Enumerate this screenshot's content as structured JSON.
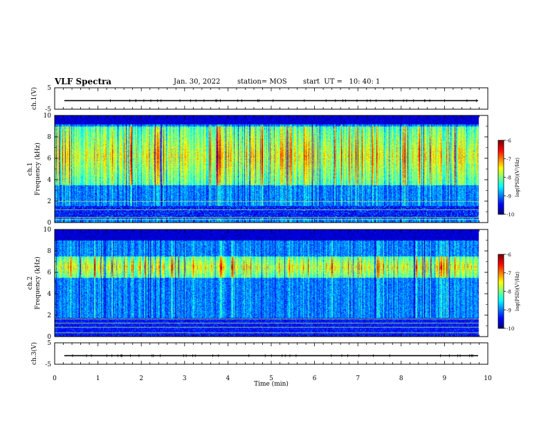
{
  "header": {
    "title": "VLF Spectra",
    "date": "Jan. 30, 2022",
    "station": "station= MOS",
    "start": "start  UT =   10: 40: 1"
  },
  "chart_data": [
    {
      "type": "line",
      "name": "ch1-waveform",
      "ylabel": "ch.1(V)",
      "ylim": [
        -5,
        5
      ],
      "yticks": [
        "5",
        "-5"
      ],
      "xlim": [
        0,
        10
      ],
      "level": -1
    },
    {
      "type": "heatmap",
      "name": "ch1-spectrogram",
      "ylabel": "ch.1\nFrequency (kHz)",
      "ylim": [
        0,
        10
      ],
      "yticks": [
        "0",
        "2",
        "4",
        "6",
        "8",
        "10"
      ],
      "xlim": [
        0,
        10
      ],
      "data_end_min": 9.8,
      "colorbar": {
        "label": "log(PSD)(V²/Hz)",
        "ticks": [
          "-6",
          "-7",
          "-8",
          "-9",
          "-10"
        ],
        "range": [
          -10,
          -6
        ]
      },
      "bands": {
        "bright_khz": [
          3.5,
          9.0
        ],
        "dark_top_khz": [
          9.2,
          10
        ],
        "quiet_khz": [
          0.4,
          1.6
        ]
      }
    },
    {
      "type": "heatmap",
      "name": "ch2-spectrogram",
      "ylabel": "ch.2\nFrequency (kHz)",
      "ylim": [
        0,
        10
      ],
      "yticks": [
        "0",
        "2",
        "4",
        "6",
        "8",
        "10"
      ],
      "xlim": [
        0,
        10
      ],
      "data_end_min": 9.8,
      "colorbar": {
        "label": "log(PSD)(V²/Hz)",
        "ticks": [
          "-6",
          "-7",
          "-8",
          "-9",
          "-10"
        ],
        "range": [
          -10,
          -6
        ]
      },
      "bands": {
        "bright_khz": [
          5.5,
          7.5
        ],
        "dark_top_khz": [
          9.0,
          10
        ],
        "quiet_khz": [
          0,
          1.8
        ]
      }
    },
    {
      "type": "line",
      "name": "ch3-waveform",
      "ylabel": "ch.3(V)",
      "ylim": [
        -5,
        5
      ],
      "yticks": [
        "5",
        "-5"
      ],
      "xlim": [
        0,
        10
      ],
      "level": -1,
      "xlabel": "Time (min)",
      "xticks": [
        "0",
        "1",
        "2",
        "3",
        "4",
        "5",
        "6",
        "7",
        "8",
        "9",
        "10"
      ]
    }
  ]
}
